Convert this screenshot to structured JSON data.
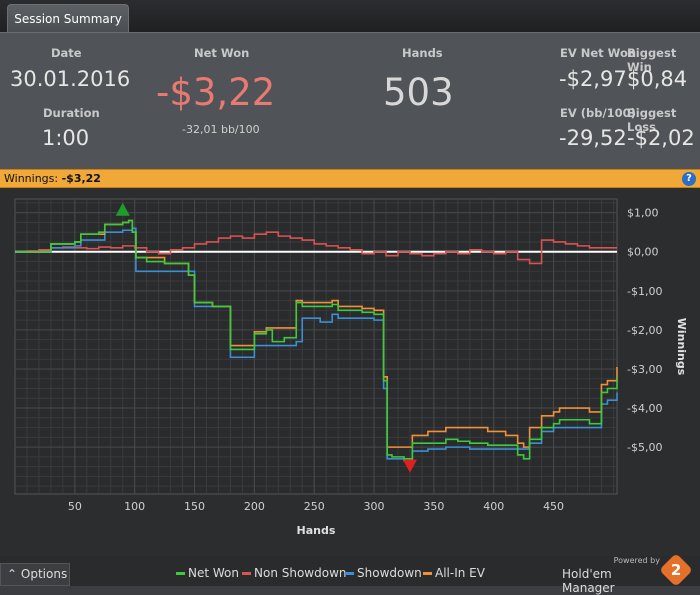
{
  "tab": {
    "label": "Session Summary"
  },
  "summary": {
    "date_label": "Date",
    "date_value": "30.01.2016",
    "duration_label": "Duration",
    "duration_value": "1:00",
    "netwon_label": "Net Won",
    "netwon_value": "-$3,22",
    "netwon_sub": "-32,01 bb/100",
    "hands_label": "Hands",
    "hands_value": "503",
    "evnet_label": "EV Net Won",
    "evnet_value": "-$2,97",
    "bigwin_label": "Biggest Win",
    "bigwin_value": "$0,84",
    "evbb_label": "EV (bb/100)",
    "evbb_value": "-29,52",
    "bigloss_label": "Biggest Loss",
    "bigloss_value": "-$2,02"
  },
  "bar": {
    "title": "Winnings:",
    "value": "-$3,22",
    "help": "?"
  },
  "footer": {
    "options_label": "Options",
    "legend": [
      {
        "label": "Net Won",
        "color": "#3ccb3c"
      },
      {
        "label": "Non Showdown",
        "color": "#d9534f"
      },
      {
        "label": "Showdown",
        "color": "#3a8fd6"
      },
      {
        "label": "All-In EV",
        "color": "#f0913a"
      }
    ],
    "powered": "Powered by",
    "brand": "Hold'em Manager",
    "logo_num": "2"
  },
  "chart_data": {
    "type": "line",
    "xlabel": "Hands",
    "ylabel": "Winnings",
    "xlim": [
      0,
      503
    ],
    "ylim": [
      -6.2,
      1.35
    ],
    "xticks": [
      50,
      100,
      150,
      200,
      250,
      300,
      350,
      400,
      450
    ],
    "yticks": [
      1,
      0,
      -1,
      -2,
      -3,
      -4,
      -5
    ],
    "ytick_labels": [
      "$1,00",
      "$0,00",
      "-$1,00",
      "-$2,00",
      "-$3,00",
      "-$4,00",
      "-$5,00"
    ],
    "grid": true,
    "legend_position": "bottom",
    "max_marker": {
      "x": 90,
      "y": 1.05
    },
    "min_marker": {
      "x": 330,
      "y": -5.45
    },
    "series": [
      {
        "name": "Net Won",
        "color": "#3ccb3c",
        "x": [
          0,
          25,
          30,
          50,
          55,
          70,
          75,
          90,
          95,
          98,
          101,
          110,
          125,
          140,
          145,
          150,
          165,
          180,
          200,
          210,
          215,
          225,
          235,
          240,
          255,
          265,
          270,
          290,
          300,
          308,
          311,
          315,
          325,
          332,
          345,
          360,
          370,
          380,
          395,
          410,
          420,
          425,
          430,
          440,
          450,
          455,
          465,
          480,
          490,
          495,
          503
        ],
        "y": [
          0,
          0,
          0.2,
          0.25,
          0.45,
          0.5,
          0.7,
          0.75,
          0.8,
          0.5,
          -0.15,
          -0.25,
          -0.3,
          -0.3,
          -0.6,
          -1.3,
          -1.4,
          -2.5,
          -2.1,
          -2.0,
          -2.3,
          -2.2,
          -1.3,
          -1.4,
          -1.4,
          -1.35,
          -1.5,
          -1.55,
          -1.6,
          -3.3,
          -5.2,
          -5.25,
          -5.3,
          -4.9,
          -4.9,
          -4.8,
          -4.85,
          -4.9,
          -4.95,
          -4.95,
          -5.2,
          -5.3,
          -4.8,
          -4.5,
          -4.4,
          -4.3,
          -4.3,
          -4.4,
          -3.6,
          -3.5,
          -3.2
        ]
      },
      {
        "name": "Non Showdown",
        "color": "#d9534f",
        "x": [
          0,
          10,
          20,
          30,
          40,
          50,
          60,
          70,
          80,
          90,
          100,
          110,
          120,
          130,
          140,
          150,
          160,
          170,
          180,
          190,
          200,
          210,
          220,
          230,
          240,
          250,
          260,
          270,
          280,
          290,
          300,
          310,
          320,
          330,
          340,
          350,
          360,
          370,
          380,
          390,
          400,
          410,
          420,
          430,
          440,
          450,
          460,
          470,
          480,
          490,
          503
        ],
        "y": [
          0,
          0.02,
          0.05,
          0.1,
          0.12,
          0.1,
          0.08,
          0.12,
          0.1,
          0.15,
          0.1,
          0.0,
          -0.05,
          0.05,
          0.1,
          0.2,
          0.25,
          0.35,
          0.4,
          0.35,
          0.45,
          0.5,
          0.4,
          0.35,
          0.3,
          0.2,
          0.15,
          0.1,
          0.05,
          -0.05,
          0.0,
          -0.1,
          0.0,
          -0.05,
          -0.1,
          -0.05,
          0.0,
          -0.05,
          0.05,
          0.0,
          -0.05,
          0.0,
          -0.2,
          -0.3,
          0.3,
          0.25,
          0.2,
          0.15,
          0.1,
          0.1,
          0.1
        ]
      },
      {
        "name": "Showdown",
        "color": "#3a8fd6",
        "x": [
          0,
          25,
          30,
          50,
          55,
          75,
          90,
          98,
          101,
          125,
          145,
          150,
          180,
          185,
          200,
          235,
          240,
          255,
          265,
          270,
          300,
          308,
          311,
          325,
          332,
          345,
          360,
          380,
          395,
          410,
          420,
          425,
          430,
          440,
          450,
          465,
          480,
          490,
          495,
          503
        ],
        "y": [
          0,
          0,
          0.1,
          0.15,
          0.3,
          0.5,
          0.55,
          0.6,
          -0.5,
          -0.5,
          -0.5,
          -1.4,
          -2.7,
          -2.7,
          -2.4,
          -2.3,
          -1.7,
          -1.8,
          -1.6,
          -1.7,
          -1.75,
          -3.5,
          -5.3,
          -5.35,
          -5.1,
          -5.05,
          -5.0,
          -5.05,
          -5.05,
          -5.05,
          -5.05,
          -5.05,
          -4.9,
          -4.6,
          -4.5,
          -4.5,
          -4.5,
          -3.9,
          -3.8,
          -3.6
        ]
      },
      {
        "name": "All-In EV",
        "color": "#f0913a",
        "x": [
          0,
          25,
          30,
          50,
          55,
          75,
          90,
          95,
          98,
          101,
          125,
          145,
          150,
          165,
          180,
          200,
          210,
          235,
          240,
          255,
          265,
          270,
          290,
          300,
          308,
          311,
          325,
          332,
          345,
          360,
          380,
          395,
          410,
          420,
          425,
          430,
          440,
          450,
          455,
          465,
          480,
          490,
          495,
          503
        ],
        "y": [
          0,
          0,
          0.2,
          0.25,
          0.45,
          0.7,
          0.75,
          0.8,
          0.5,
          -0.15,
          -0.3,
          -0.6,
          -1.3,
          -1.4,
          -2.4,
          -2.05,
          -1.95,
          -1.25,
          -1.3,
          -1.3,
          -1.25,
          -1.4,
          -1.45,
          -1.5,
          -3.2,
          -5.0,
          -5.0,
          -4.7,
          -4.6,
          -4.5,
          -4.5,
          -4.6,
          -4.7,
          -4.9,
          -5.0,
          -4.5,
          -4.2,
          -4.1,
          -4.0,
          -4.0,
          -4.1,
          -3.4,
          -3.3,
          -2.95
        ]
      }
    ]
  }
}
